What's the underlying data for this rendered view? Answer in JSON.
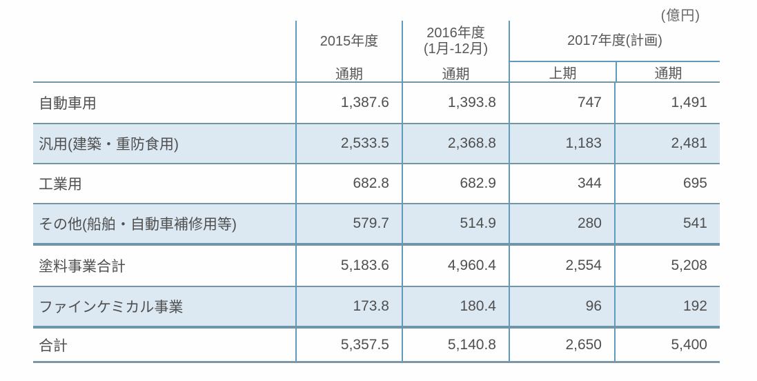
{
  "unit_label": "(億円)",
  "colors": {
    "vertical_line_blue": "#5e9abb",
    "horizontal_line_blue": "#7295a8",
    "alt_row_fill": "#dce8f2",
    "text_gray": "#4f4f4f"
  },
  "header": {
    "col_2015": {
      "year": "2015年度",
      "period": "通期"
    },
    "col_2016": {
      "year": "2016年度",
      "months": "(1月-12月)",
      "period": "通期"
    },
    "col_2017": {
      "group": "2017年度(計画)",
      "first_half": "上期",
      "full_year": "通期"
    }
  },
  "rows": [
    {
      "label": "自動車用",
      "values": [
        "1,387.6",
        "1,393.8",
        "747",
        "1,491"
      ]
    },
    {
      "label": "汎用(建築・重防食用)",
      "values": [
        "2,533.5",
        "2,368.8",
        "1,183",
        "2,481"
      ]
    },
    {
      "label": "工業用",
      "values": [
        "682.8",
        "682.9",
        "344",
        "695"
      ]
    },
    {
      "label": "その他(船舶・自動車補修用等)",
      "values": [
        "579.7",
        "514.9",
        "280",
        "541"
      ]
    },
    {
      "label": "塗料事業合計",
      "values": [
        "5,183.6",
        "4,960.4",
        "2,554",
        "5,208"
      ]
    },
    {
      "label": "ファインケミカル事業",
      "values": [
        "173.8",
        "180.4",
        "96",
        "192"
      ]
    },
    {
      "label": "合計",
      "values": [
        "5,357.5",
        "5,140.8",
        "2,650",
        "5,400"
      ]
    }
  ]
}
